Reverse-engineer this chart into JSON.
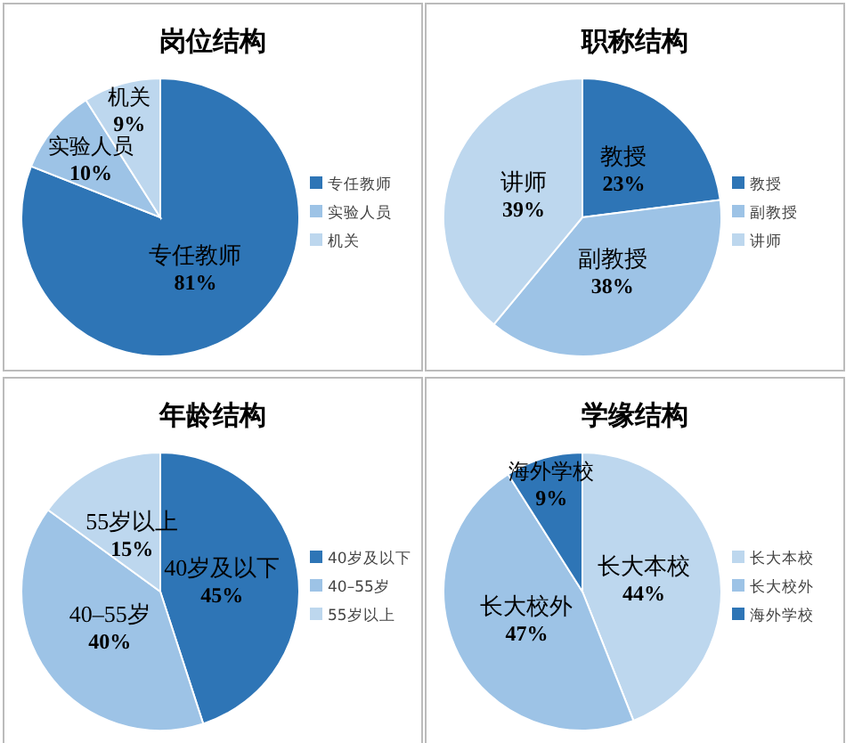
{
  "chart_data": [
    {
      "type": "pie",
      "title": "岗位结构",
      "categories": [
        "专任教师",
        "实验人员",
        "机关"
      ],
      "values": [
        81,
        10,
        9
      ],
      "colors": [
        "#2e75b6",
        "#9dc3e6",
        "#bdd7ee"
      ],
      "value_labels": [
        "81%",
        "10%",
        "9%"
      ],
      "legend": "right"
    },
    {
      "type": "pie",
      "title": "职称结构",
      "categories": [
        "教授",
        "副教授",
        "讲师"
      ],
      "values": [
        23,
        38,
        39
      ],
      "colors": [
        "#2e75b6",
        "#9dc3e6",
        "#bdd7ee"
      ],
      "value_labels": [
        "23%",
        "38%",
        "39%"
      ],
      "legend": "right"
    },
    {
      "type": "pie",
      "title": "年龄结构",
      "categories": [
        "40岁及以下",
        "40–55岁",
        "55岁以上"
      ],
      "values": [
        45,
        40,
        15
      ],
      "colors": [
        "#2e75b6",
        "#9dc3e6",
        "#bdd7ee"
      ],
      "value_labels": [
        "45%",
        "40%",
        "15%"
      ],
      "legend": "right"
    },
    {
      "type": "pie",
      "title": "学缘结构",
      "categories": [
        "长大本校",
        "长大校外",
        "海外学校"
      ],
      "values": [
        44,
        47,
        9
      ],
      "colors": [
        "#bdd7ee",
        "#9dc3e6",
        "#2e75b6"
      ],
      "value_labels": [
        "44%",
        "47%",
        "9%"
      ],
      "legend": "right"
    }
  ]
}
